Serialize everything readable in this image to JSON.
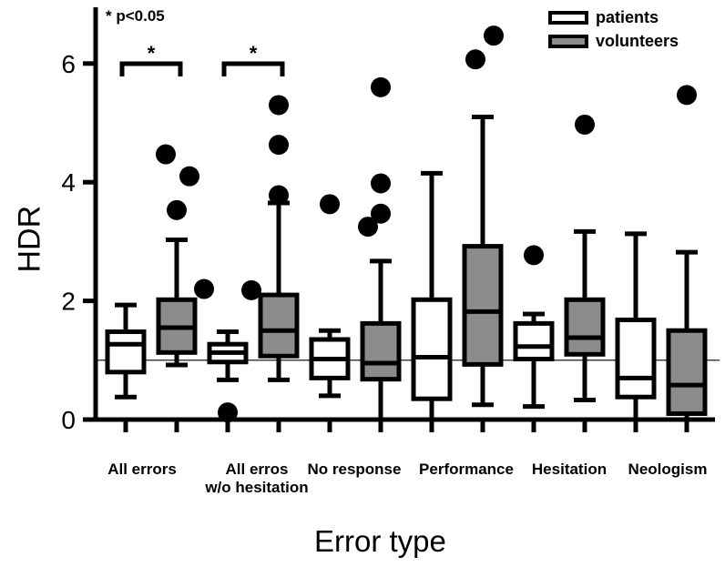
{
  "chart_data": {
    "type": "boxplot",
    "title": "",
    "xlabel": "Error type",
    "ylabel": "HDR",
    "ylim": [
      0,
      7
    ],
    "yticks": [
      "0",
      "2",
      "4",
      "6"
    ],
    "reference_line": 1,
    "significance_note": "* p<0.05",
    "significance_marker": "*",
    "significant_categories": [
      "All errors",
      "All erros w/o hesitation"
    ],
    "legend": {
      "placement": "top-right",
      "entries": [
        {
          "label": "patients",
          "color": "#ffffff"
        },
        {
          "label": "volunteers",
          "color": "#8c8c8c"
        }
      ]
    },
    "categories": [
      {
        "line1": "All errors",
        "line2": ""
      },
      {
        "line1": "All erros",
        "line2": "w/o hesitation"
      },
      {
        "line1": "No response",
        "line2": ""
      },
      {
        "line1": "Performance",
        "line2": ""
      },
      {
        "line1": "Hesitation",
        "line2": ""
      },
      {
        "line1": "Neologism",
        "line2": ""
      }
    ],
    "series": [
      {
        "name": "patients",
        "color": "#ffffff",
        "boxes": [
          {
            "category": "All errors",
            "whisker_low": 0.38,
            "q1": 0.8,
            "median": 1.27,
            "q3": 1.48,
            "whisker_high": 1.93,
            "outliers": []
          },
          {
            "category": "All erros w/o hesitation",
            "whisker_low": 0.67,
            "q1": 0.97,
            "median": 1.13,
            "q3": 1.27,
            "whisker_high": 1.48,
            "outliers": [
              0.12,
              2.2,
              2.18
            ]
          },
          {
            "category": "No response",
            "whisker_low": 0.4,
            "q1": 0.7,
            "median": 1.02,
            "q3": 1.35,
            "whisker_high": 1.5,
            "outliers": [
              3.63
            ]
          },
          {
            "category": "Performance",
            "whisker_low": 0,
            "q1": 0.35,
            "median": 1.05,
            "q3": 2.02,
            "whisker_high": 4.15,
            "outliers": []
          },
          {
            "category": "Hesitation",
            "whisker_low": 0.22,
            "q1": 1.02,
            "median": 1.23,
            "q3": 1.62,
            "whisker_high": 1.78,
            "outliers": [
              2.77
            ]
          },
          {
            "category": "Neologism",
            "whisker_low": 0,
            "q1": 0.38,
            "median": 0.7,
            "q3": 1.68,
            "whisker_high": 3.13,
            "outliers": []
          }
        ]
      },
      {
        "name": "volunteers",
        "color": "#8c8c8c",
        "boxes": [
          {
            "category": "All errors",
            "whisker_low": 0.92,
            "q1": 1.13,
            "median": 1.55,
            "q3": 2.02,
            "whisker_high": 3.03,
            "outliers": [
              3.53,
              4.47,
              4.1
            ]
          },
          {
            "category": "All erros w/o hesitation",
            "whisker_low": 0.67,
            "q1": 1.07,
            "median": 1.5,
            "q3": 2.1,
            "whisker_high": 3.65,
            "outliers": [
              3.78,
              4.63,
              5.3
            ]
          },
          {
            "category": "No response",
            "whisker_low": 0,
            "q1": 0.68,
            "median": 0.95,
            "q3": 1.62,
            "whisker_high": 2.67,
            "outliers": [
              3.25,
              3.47,
              3.98,
              5.6
            ]
          },
          {
            "category": "Performance",
            "whisker_low": 0.25,
            "q1": 0.93,
            "median": 1.82,
            "q3": 2.92,
            "whisker_high": 5.1,
            "outliers": [
              6.07,
              6.47
            ]
          },
          {
            "category": "Hesitation",
            "whisker_low": 0.33,
            "q1": 1.1,
            "median": 1.38,
            "q3": 2.02,
            "whisker_high": 3.17,
            "outliers": [
              4.97
            ]
          },
          {
            "category": "Neologism",
            "whisker_low": 0,
            "q1": 0.1,
            "median": 0.58,
            "q3": 1.5,
            "whisker_high": 2.82,
            "outliers": [
              5.47
            ]
          }
        ]
      }
    ]
  }
}
